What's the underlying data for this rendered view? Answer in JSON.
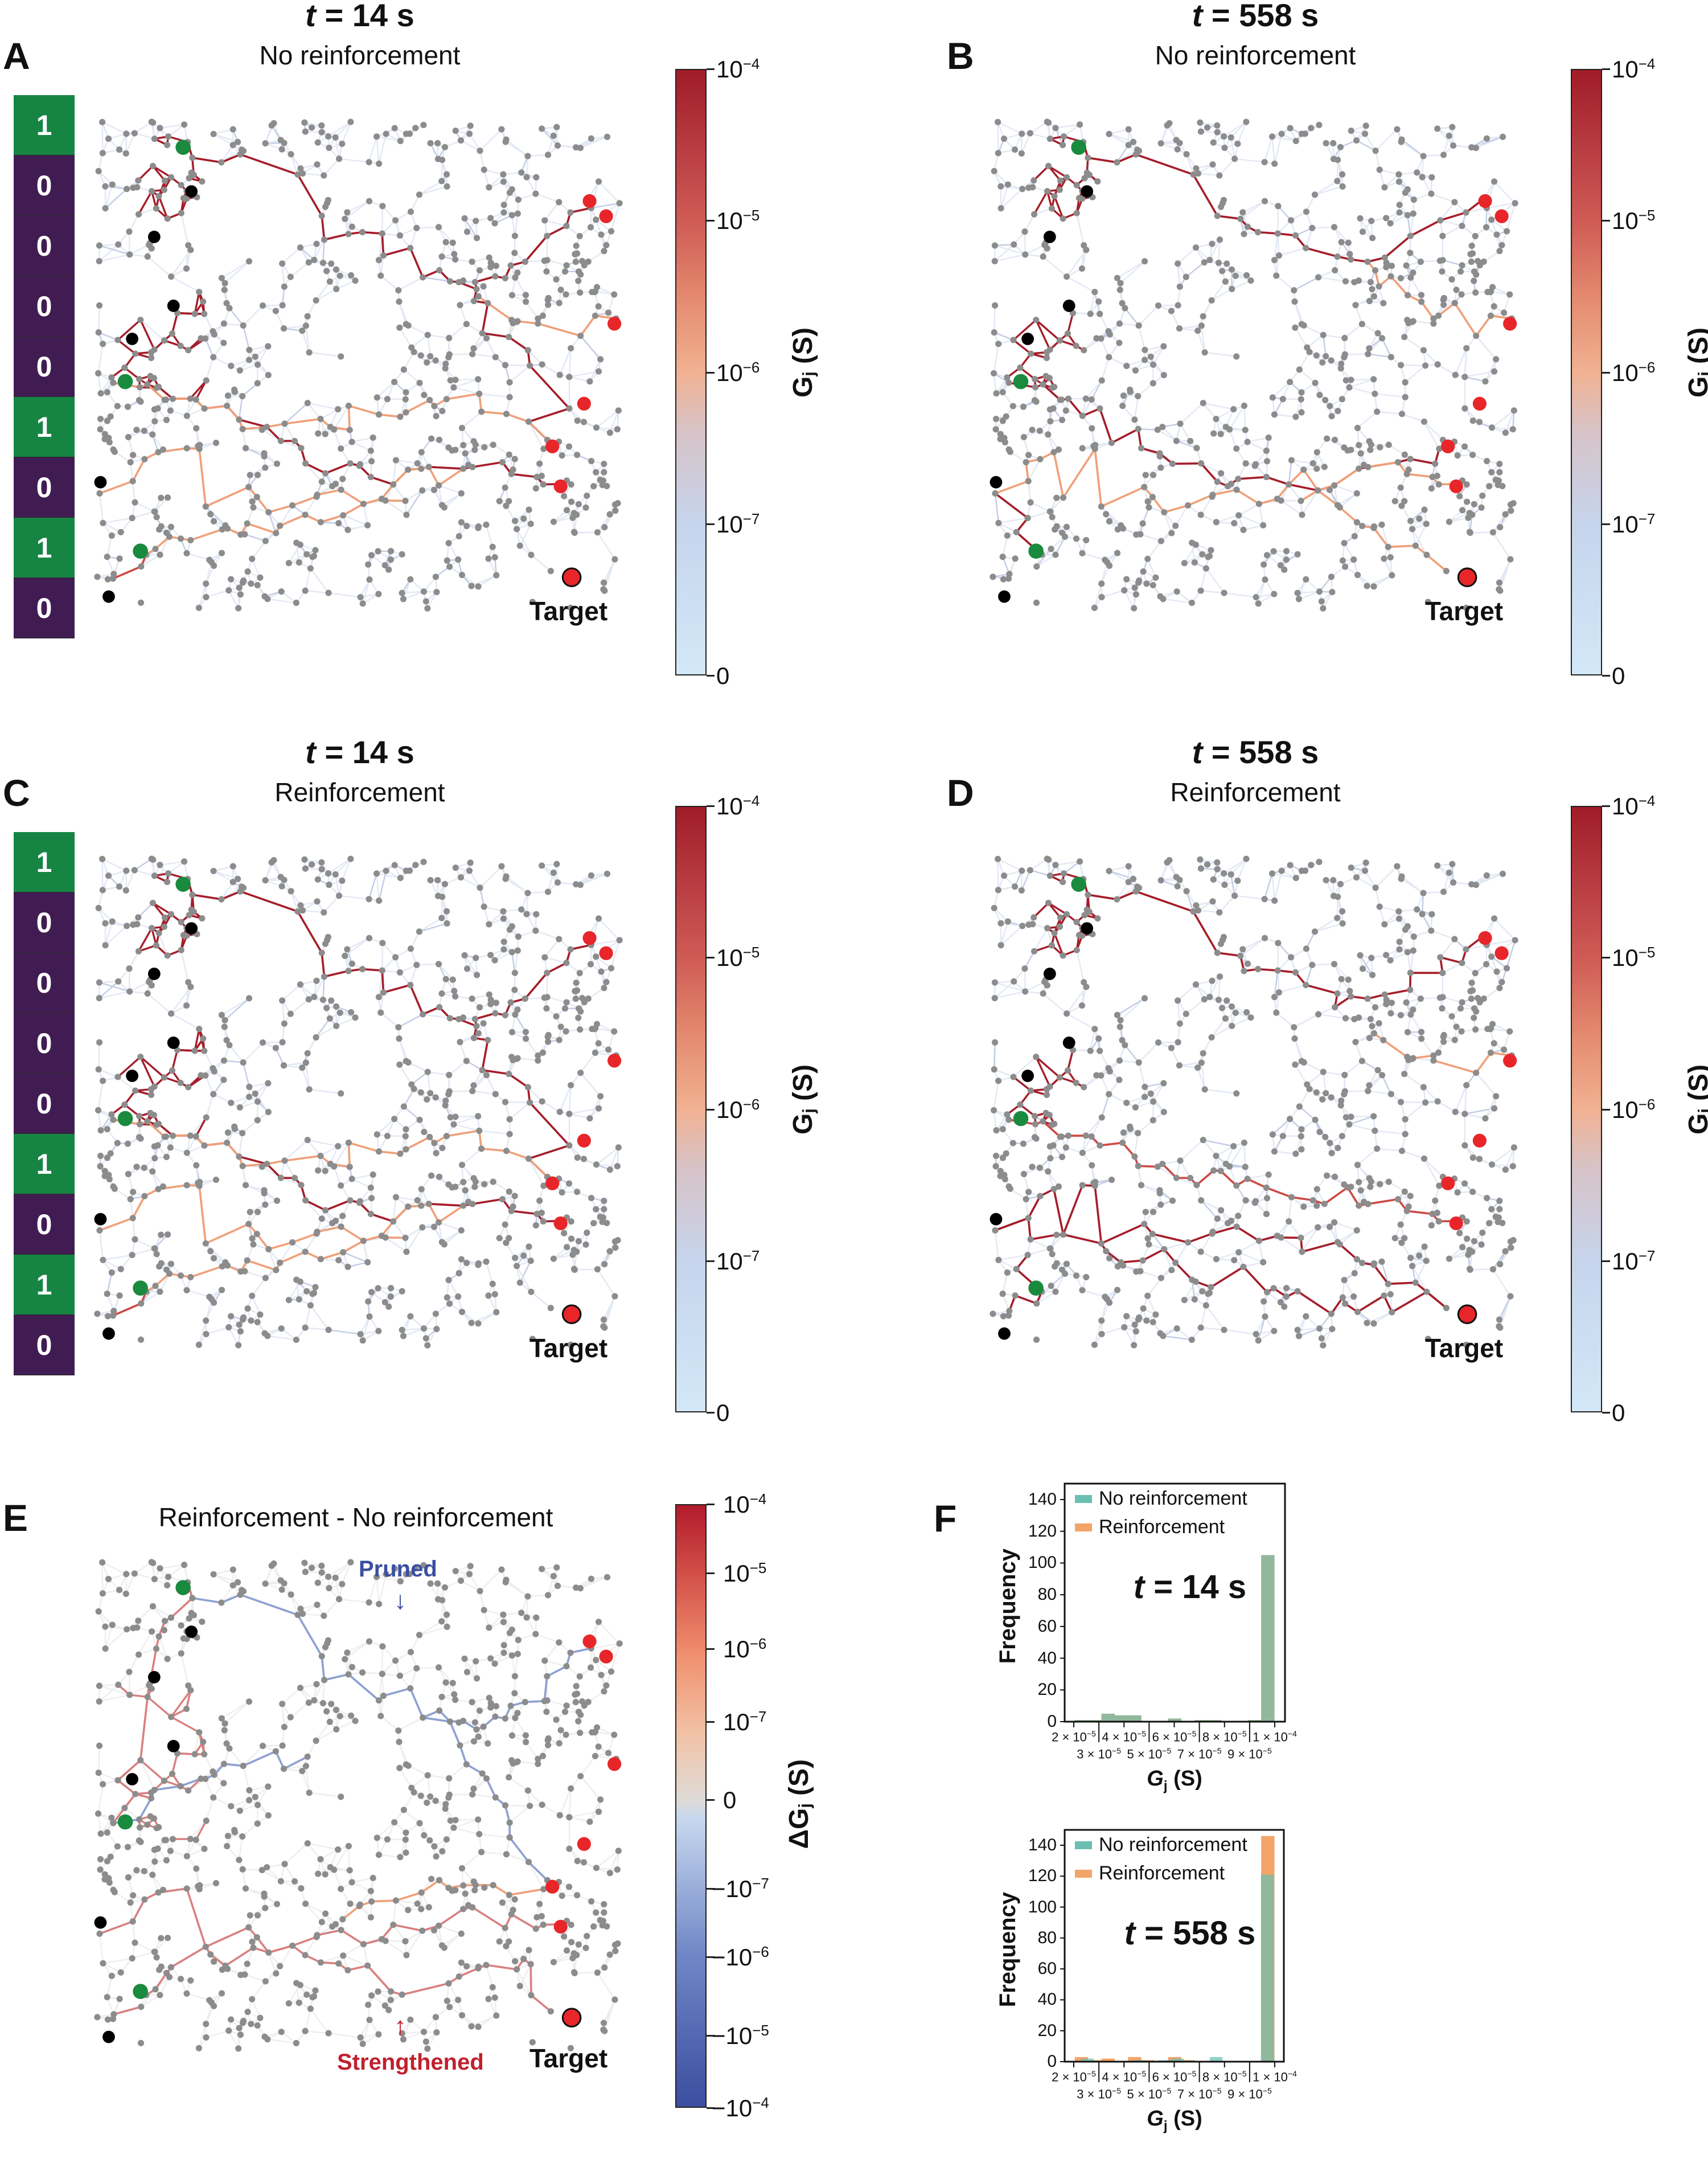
{
  "colors": {
    "green_bit": "#168544",
    "purple_bit": "#411c52",
    "source_green": "#1a8a3f",
    "source_black": "#000000",
    "output_red": "#e8262a",
    "strong_edge": "#a51d2a",
    "mid_edge": "#f0a07a",
    "weak_edge": "#c7d3ea",
    "node_gray": "#8c8c8c",
    "pruned_blue": "#3a4fa0",
    "strengthened_red": "#c0202e",
    "hist_no_reinforcement": "#6bbfb0",
    "hist_reinforcement": "#f3a468"
  },
  "bits": [
    "1",
    "0",
    "0",
    "0",
    "0",
    "1",
    "0",
    "1",
    "0"
  ],
  "panels": {
    "A": {
      "letter": "A",
      "time_var": "t",
      "time_value": " = 14 s",
      "subtitle": "No reinforcement",
      "target": "Target"
    },
    "B": {
      "letter": "B",
      "time_var": "t",
      "time_value": " = 558 s",
      "subtitle": "No reinforcement",
      "target": "Target"
    },
    "C": {
      "letter": "C",
      "time_var": "t",
      "time_value": " = 14 s",
      "subtitle": "Reinforcement",
      "target": "Target"
    },
    "D": {
      "letter": "D",
      "time_var": "t",
      "time_value": " = 558 s",
      "subtitle": "Reinforcement",
      "target": "Target"
    },
    "E": {
      "letter": "E",
      "title": "Reinforcement - No reinforcement",
      "pruned": "Pruned",
      "strengthened": "Strengthened",
      "target": "Target"
    },
    "F": {
      "letter": "F"
    }
  },
  "colorbar": {
    "label_main": "G",
    "label_sub": "j",
    "label_unit": " (S)",
    "ticks": [
      {
        "base": "10",
        "exp": "−4"
      },
      {
        "base": "10",
        "exp": "−5"
      },
      {
        "base": "10",
        "exp": "−6"
      },
      {
        "base": "10",
        "exp": "−7"
      },
      {
        "base": "0",
        "exp": ""
      }
    ]
  },
  "colorbar_delta": {
    "label_main": "ΔG",
    "label_sub": "j",
    "label_unit": " (S)",
    "ticks": [
      {
        "base": "10",
        "exp": "−4"
      },
      {
        "base": "10",
        "exp": "−5"
      },
      {
        "base": "10",
        "exp": "−6"
      },
      {
        "base": "10",
        "exp": "−7"
      },
      {
        "base": "0",
        "exp": ""
      },
      {
        "base": "−10",
        "exp": "−7"
      },
      {
        "base": "−10",
        "exp": "−6"
      },
      {
        "base": "−10",
        "exp": "−5"
      },
      {
        "base": "−10",
        "exp": "−4"
      }
    ]
  },
  "chart_data": [
    {
      "type": "bar",
      "title_var": "t",
      "title_value": " = 14 s",
      "xlabel_main": "G",
      "xlabel_sub": "j",
      "xlabel_unit": " (S)",
      "ylabel": "Frequency",
      "ylim": [
        0,
        150
      ],
      "yticks": [
        "0",
        "20",
        "40",
        "60",
        "80",
        "100",
        "120",
        "140"
      ],
      "xticks": [
        {
          "m": "2 × 10",
          "e": "−5"
        },
        {
          "m": "3 × 10",
          "e": "−5"
        },
        {
          "m": "4 × 10",
          "e": "−5"
        },
        {
          "m": "5 × 10",
          "e": "−5"
        },
        {
          "m": "6 × 10",
          "e": "−5"
        },
        {
          "m": "7 × 10",
          "e": "−5"
        },
        {
          "m": "8 × 10",
          "e": "−5"
        },
        {
          "m": "9 × 10",
          "e": "−5"
        },
        {
          "m": "1 × 10",
          "e": "−4"
        }
      ],
      "xtick_values": [
        2e-05,
        3e-05,
        4e-05,
        5e-05,
        6e-05,
        7e-05,
        8e-05,
        9e-05,
        0.0001
      ],
      "legend": "top-left",
      "series": [
        {
          "name": "No reinforcement",
          "bins": [
            [
              2.04e-05,
              2.57e-05,
              1
            ],
            [
              2.57e-05,
              3.1e-05,
              1
            ],
            [
              3.1e-05,
              3.63e-05,
              5
            ],
            [
              3.63e-05,
              4.16e-05,
              4
            ],
            [
              4.16e-05,
              4.69e-05,
              4
            ],
            [
              5.75e-05,
              6.28e-05,
              2
            ],
            [
              6.81e-05,
              7.34e-05,
              1
            ],
            [
              7.34e-05,
              7.87e-05,
              1
            ],
            [
              8.93e-05,
              9.46e-05,
              1
            ],
            [
              9.46e-05,
              9.99e-05,
              105
            ]
          ]
        },
        {
          "name": "Reinforcement",
          "bins": [
            [
              2.04e-05,
              2.57e-05,
              1
            ],
            [
              2.57e-05,
              3.1e-05,
              1
            ],
            [
              3.1e-05,
              3.63e-05,
              5
            ],
            [
              3.63e-05,
              4.16e-05,
              4
            ],
            [
              4.16e-05,
              4.69e-05,
              4
            ],
            [
              5.75e-05,
              6.28e-05,
              2
            ],
            [
              6.81e-05,
              7.34e-05,
              1
            ],
            [
              7.34e-05,
              7.87e-05,
              1
            ],
            [
              8.93e-05,
              9.46e-05,
              1
            ],
            [
              9.46e-05,
              9.99e-05,
              105
            ]
          ]
        }
      ]
    },
    {
      "type": "bar",
      "title_var": "t",
      "title_value": " = 558 s",
      "xlabel_main": "G",
      "xlabel_sub": "j",
      "xlabel_unit": " (S)",
      "ylabel": "Frequency",
      "ylim": [
        0,
        150
      ],
      "yticks": [
        "0",
        "20",
        "40",
        "60",
        "80",
        "100",
        "120",
        "140"
      ],
      "xticks": [
        {
          "m": "2 × 10",
          "e": "−5"
        },
        {
          "m": "3 × 10",
          "e": "−5"
        },
        {
          "m": "4 × 10",
          "e": "−5"
        },
        {
          "m": "5 × 10",
          "e": "−5"
        },
        {
          "m": "6 × 10",
          "e": "−5"
        },
        {
          "m": "7 × 10",
          "e": "−5"
        },
        {
          "m": "8 × 10",
          "e": "−5"
        },
        {
          "m": "9 × 10",
          "e": "−5"
        },
        {
          "m": "1 × 10",
          "e": "−4"
        }
      ],
      "xtick_values": [
        2e-05,
        3e-05,
        4e-05,
        5e-05,
        6e-05,
        7e-05,
        8e-05,
        9e-05,
        0.0001
      ],
      "legend": "top-left",
      "series": [
        {
          "name": "No reinforcement",
          "bins": [
            [
              2.28e-05,
              2.79e-05,
              2
            ],
            [
              4.34e-05,
              4.85e-05,
              1
            ],
            [
              5.36e-05,
              5.87e-05,
              1
            ],
            [
              5.87e-05,
              6.38e-05,
              2
            ],
            [
              7.42e-05,
              7.92e-05,
              3
            ],
            [
              9.45e-05,
              9.98e-05,
              121
            ]
          ]
        },
        {
          "name": "Reinforcement",
          "bins": [
            [
              2.04e-05,
              2.57e-05,
              3
            ],
            [
              2.57e-05,
              3.1e-05,
              1
            ],
            [
              3.1e-05,
              3.63e-05,
              2
            ],
            [
              4.16e-05,
              4.69e-05,
              3
            ],
            [
              4.69e-05,
              5.22e-05,
              1
            ],
            [
              5.75e-05,
              6.28e-05,
              3
            ],
            [
              6.28e-05,
              6.81e-05,
              1
            ],
            [
              9.46e-05,
              9.99e-05,
              146
            ]
          ]
        }
      ]
    }
  ]
}
